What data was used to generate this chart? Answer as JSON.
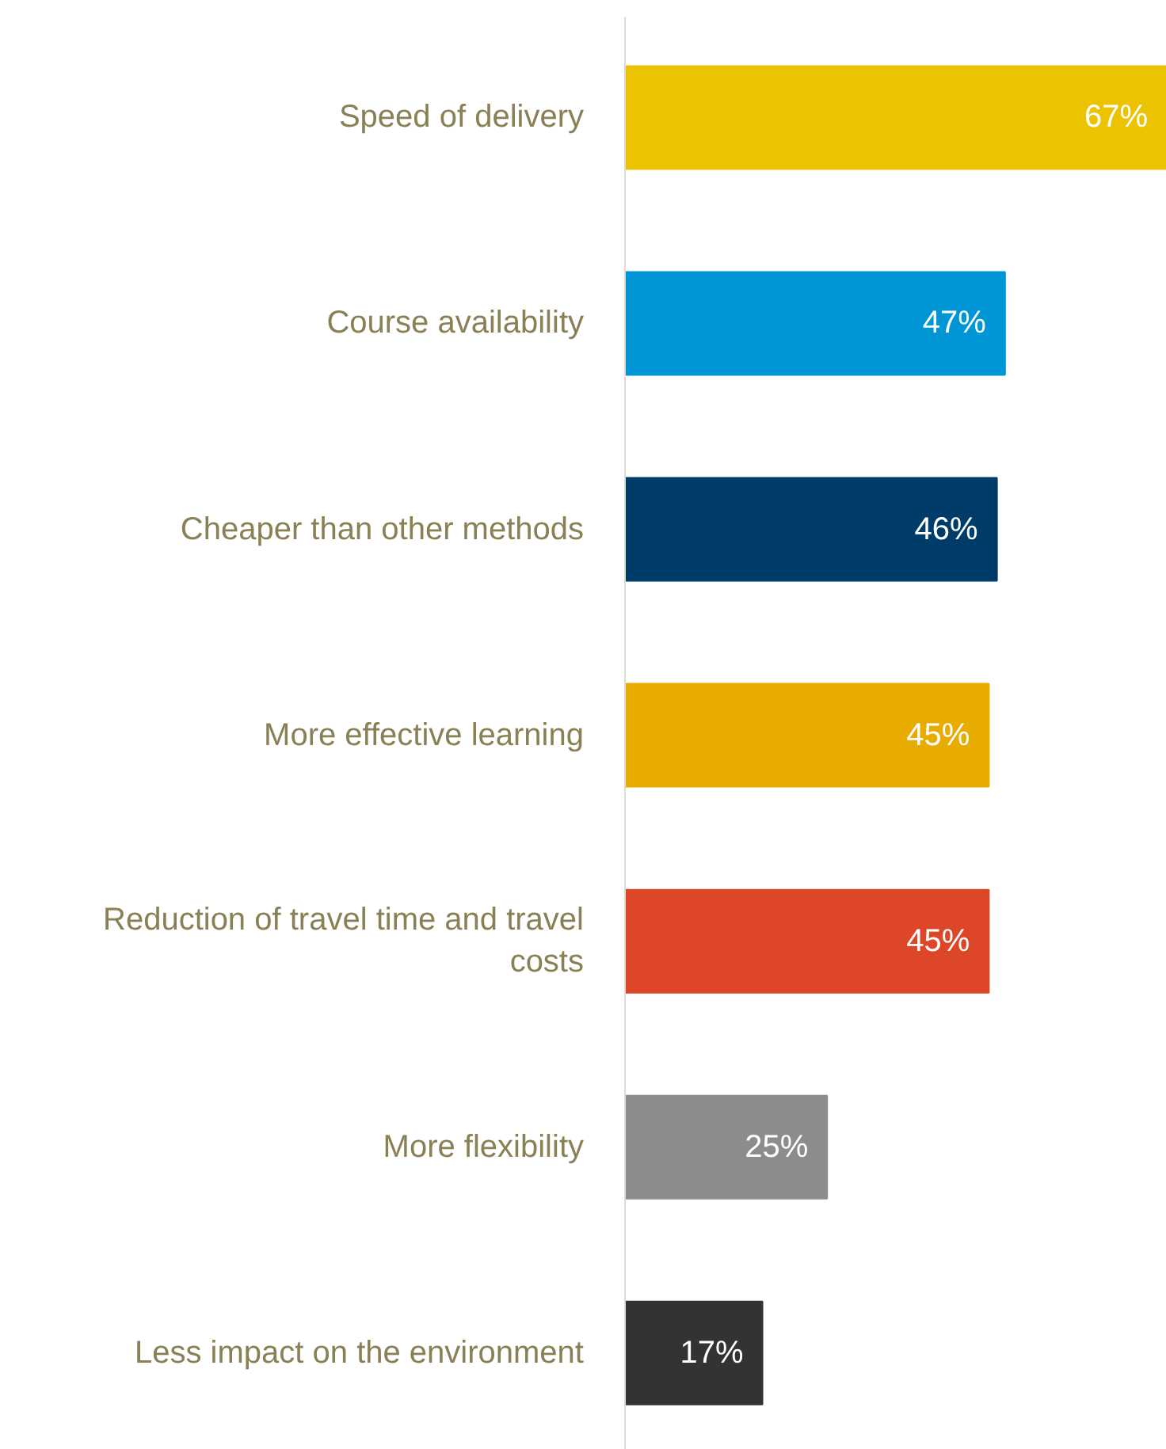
{
  "chart_data": {
    "type": "bar",
    "orientation": "horizontal",
    "categories": [
      "Speed of delivery",
      "Course availability",
      "Cheaper than other methods",
      "More effective learning",
      "Reduction of travel time and travel costs",
      "More flexibility",
      "Less impact on the environment"
    ],
    "values": [
      67,
      47,
      46,
      45,
      45,
      25,
      17
    ],
    "value_labels": [
      "67%",
      "47%",
      "46%",
      "45%",
      "45%",
      "25%",
      "17%"
    ],
    "colors": [
      "#ecc300",
      "#0096d6",
      "#003c69",
      "#e8ab00",
      "#dd4628",
      "#8c8c8c",
      "#333333"
    ]
  }
}
